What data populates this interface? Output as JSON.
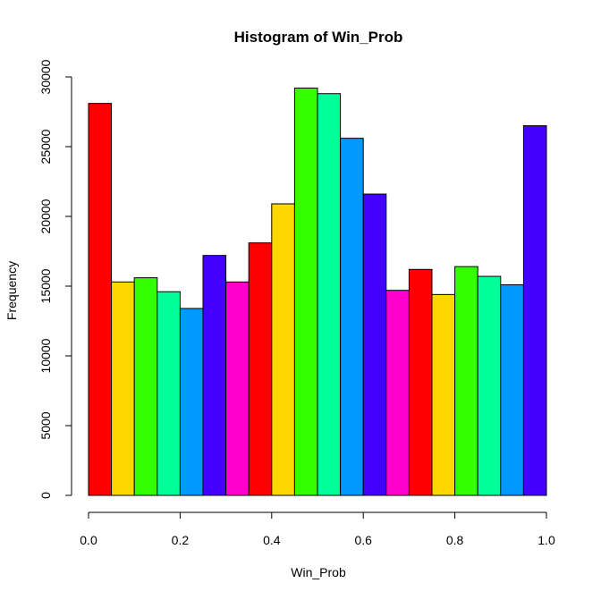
{
  "chart_data": {
    "type": "bar",
    "title": "Histogram of Win_Prob",
    "xlabel": "Win_Prob",
    "ylabel": "Frequency",
    "bins": [
      [
        0.0,
        0.05
      ],
      [
        0.05,
        0.1
      ],
      [
        0.1,
        0.15
      ],
      [
        0.15,
        0.2
      ],
      [
        0.2,
        0.25
      ],
      [
        0.25,
        0.3
      ],
      [
        0.3,
        0.35
      ],
      [
        0.35,
        0.4
      ],
      [
        0.4,
        0.45
      ],
      [
        0.45,
        0.5
      ],
      [
        0.5,
        0.55
      ],
      [
        0.55,
        0.6
      ],
      [
        0.6,
        0.65
      ],
      [
        0.65,
        0.7
      ],
      [
        0.7,
        0.75
      ],
      [
        0.75,
        0.8
      ],
      [
        0.8,
        0.85
      ],
      [
        0.85,
        0.9
      ],
      [
        0.9,
        0.95
      ],
      [
        0.95,
        1.0
      ]
    ],
    "values": [
      28100,
      15300,
      15600,
      14600,
      13400,
      17200,
      15300,
      18100,
      20900,
      29200,
      28800,
      25600,
      21600,
      14700,
      16200,
      14400,
      16400,
      15700,
      15100,
      26500
    ],
    "colors": [
      "#FF0000",
      "#FFD700",
      "#33FF00",
      "#00FF99",
      "#0099FF",
      "#4400FF",
      "#FF00CC",
      "#FF0000",
      "#FFD700",
      "#33FF00",
      "#00FF99",
      "#0099FF",
      "#4400FF",
      "#FF00CC",
      "#FF0000",
      "#FFD700",
      "#33FF00",
      "#00FF99",
      "#0099FF",
      "#4400FF"
    ],
    "xlim": [
      0.0,
      1.0
    ],
    "ylim": [
      0,
      30000
    ],
    "xticks": [
      0.0,
      0.2,
      0.4,
      0.6,
      0.8,
      1.0
    ],
    "xtick_labels": [
      "0.0",
      "0.2",
      "0.4",
      "0.6",
      "0.8",
      "1.0"
    ],
    "yticks": [
      0,
      5000,
      10000,
      15000,
      20000,
      25000,
      30000
    ],
    "ytick_labels": [
      "0",
      "5000",
      "10000",
      "15000",
      "20000",
      "25000",
      "30000"
    ],
    "grid": false,
    "legend": false
  }
}
